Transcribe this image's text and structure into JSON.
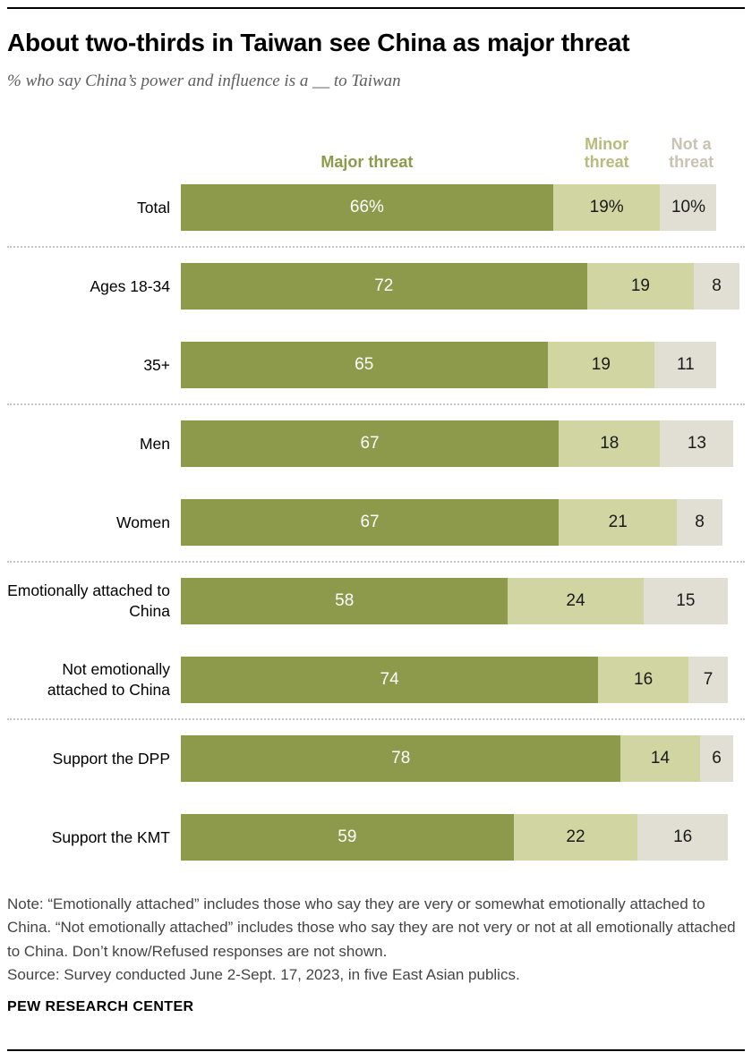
{
  "header": {
    "title": "About two-thirds in Taiwan see China as major threat",
    "subtitle": "% who say China’s power and influence is a __ to Taiwan"
  },
  "legend": {
    "major": "Major threat",
    "minor": "Minor\nthreat",
    "not_a": "Not a\nthreat"
  },
  "colors": {
    "major_bar": "#8E9A4B",
    "minor_bar": "#D0D5A2",
    "not_a_threat_bar": "#E1DED4",
    "major_legend_text": "#8E9A4B",
    "minor_legend_text": "#B5BC7C",
    "not_a_threat_legend_text": "#C9C3B3"
  },
  "chart_data": {
    "type": "bar",
    "orientation": "horizontal",
    "stacked": true,
    "xlim": [
      0,
      100
    ],
    "categories": [
      "Total",
      "Ages 18-34",
      "35+",
      "Men",
      "Women",
      "Emotionally attached to China",
      "Not emotionally attached to China",
      "Support the DPP",
      "Support the KMT"
    ],
    "series": [
      {
        "name": "Major threat",
        "values": [
          66,
          72,
          65,
          67,
          67,
          58,
          74,
          78,
          59
        ]
      },
      {
        "name": "Minor threat",
        "values": [
          19,
          19,
          19,
          18,
          21,
          24,
          16,
          14,
          22
        ]
      },
      {
        "name": "Not a threat",
        "values": [
          10,
          8,
          11,
          13,
          8,
          15,
          7,
          6,
          16
        ]
      }
    ],
    "first_row_value_suffix": "%",
    "group_separators_after_rows": [
      0,
      2,
      4,
      6
    ],
    "legend_position": "top"
  },
  "footer": {
    "note": "Note: “Emotionally attached” includes those who say they are very or somewhat emotionally attached to China. “Not emotionally attached” includes those who say they are not very or not at all emotionally attached to China. Don’t know/Refused responses are not shown.",
    "source": "Source: Survey conducted June 2-Sept. 17, 2023, in five East Asian publics.",
    "brand": "PEW RESEARCH CENTER"
  }
}
